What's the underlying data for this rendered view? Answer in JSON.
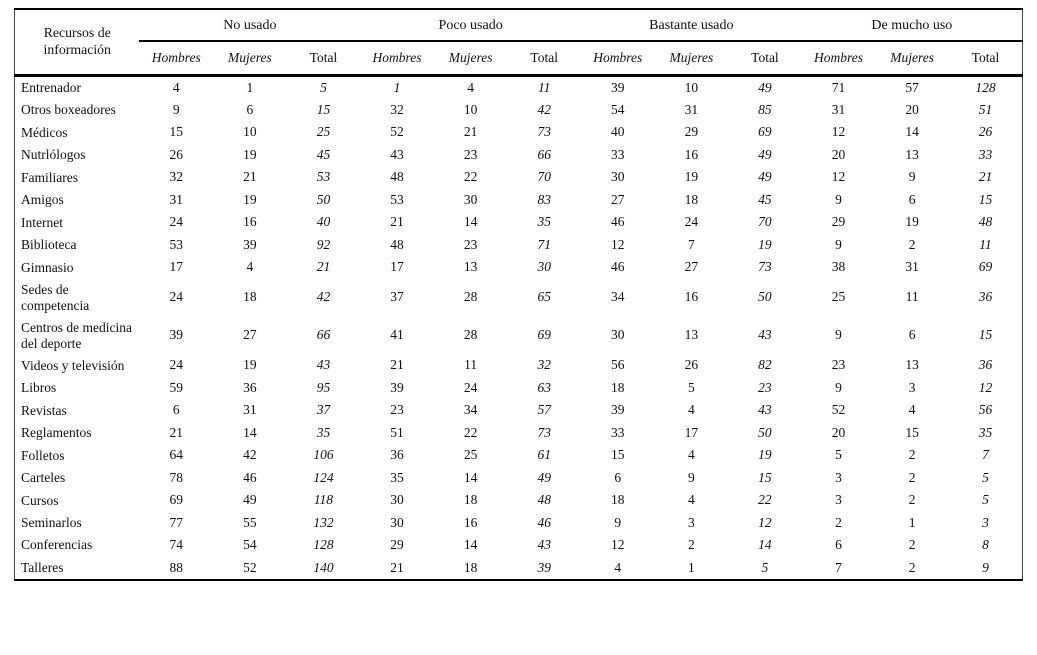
{
  "page": {
    "background": "#ffffff",
    "text_color": "#111111",
    "rule_color": "#000000"
  },
  "table": {
    "corner_header": "Recursos de información",
    "groups": [
      {
        "label": "No usado"
      },
      {
        "label": "Poco usado"
      },
      {
        "label": "Bastante usado"
      },
      {
        "label": "De mucho uso"
      }
    ],
    "subheaders": [
      "Hombres",
      "Mujeres",
      "Total"
    ],
    "italic_value_columns": [
      2,
      5,
      8,
      11
    ],
    "rows": [
      {
        "label": "Entrenador",
        "values": [
          4,
          1,
          5,
          1,
          4,
          11,
          39,
          10,
          49,
          71,
          57,
          128
        ],
        "extra_italic": [
          3
        ]
      },
      {
        "label": "Otros boxeadores",
        "values": [
          9,
          6,
          15,
          32,
          10,
          42,
          54,
          31,
          85,
          31,
          20,
          51
        ]
      },
      {
        "label": "Médicos",
        "values": [
          15,
          10,
          25,
          52,
          21,
          73,
          40,
          29,
          69,
          12,
          14,
          26
        ]
      },
      {
        "label": "Nutrlólogos",
        "values": [
          26,
          19,
          45,
          43,
          23,
          66,
          33,
          16,
          49,
          20,
          13,
          33
        ]
      },
      {
        "label": "Familiares",
        "values": [
          32,
          21,
          53,
          48,
          22,
          70,
          30,
          19,
          49,
          12,
          9,
          21
        ]
      },
      {
        "label": "Amigos",
        "values": [
          31,
          19,
          50,
          53,
          30,
          83,
          27,
          18,
          45,
          9,
          6,
          15
        ]
      },
      {
        "label": "Internet",
        "values": [
          24,
          16,
          40,
          21,
          14,
          35,
          46,
          24,
          70,
          29,
          19,
          48
        ]
      },
      {
        "label": "Biblioteca",
        "values": [
          53,
          39,
          92,
          48,
          23,
          71,
          12,
          7,
          19,
          9,
          2,
          11
        ]
      },
      {
        "label": "Gimnasio",
        "values": [
          17,
          4,
          21,
          17,
          13,
          30,
          46,
          27,
          73,
          38,
          31,
          69
        ]
      },
      {
        "label": "Sedes de competencia",
        "values": [
          24,
          18,
          42,
          37,
          28,
          65,
          34,
          16,
          50,
          25,
          11,
          36
        ]
      },
      {
        "label": "Centros de medicina del deporte",
        "values": [
          39,
          27,
          66,
          41,
          28,
          69,
          30,
          13,
          43,
          9,
          6,
          15
        ]
      },
      {
        "label": "Videos y televisión",
        "values": [
          24,
          19,
          43,
          21,
          11,
          32,
          56,
          26,
          82,
          23,
          13,
          36
        ]
      },
      {
        "label": "Libros",
        "values": [
          59,
          36,
          95,
          39,
          24,
          63,
          18,
          5,
          23,
          9,
          3,
          12
        ]
      },
      {
        "label": "Revistas",
        "values": [
          6,
          31,
          37,
          23,
          34,
          57,
          39,
          4,
          43,
          52,
          4,
          56
        ]
      },
      {
        "label": "Reglamentos",
        "values": [
          21,
          14,
          35,
          51,
          22,
          73,
          33,
          17,
          50,
          20,
          15,
          35
        ]
      },
      {
        "label": "Folletos",
        "values": [
          64,
          42,
          106,
          36,
          25,
          61,
          15,
          4,
          19,
          5,
          2,
          7
        ]
      },
      {
        "label": "Carteles",
        "values": [
          78,
          46,
          124,
          35,
          14,
          49,
          6,
          9,
          15,
          3,
          2,
          5
        ]
      },
      {
        "label": "Cursos",
        "values": [
          69,
          49,
          118,
          30,
          18,
          48,
          18,
          4,
          22,
          3,
          2,
          5
        ]
      },
      {
        "label": "Seminarlos",
        "values": [
          77,
          55,
          132,
          30,
          16,
          46,
          9,
          3,
          12,
          2,
          1,
          3
        ]
      },
      {
        "label": "Conferencias",
        "values": [
          74,
          54,
          128,
          29,
          14,
          43,
          12,
          2,
          14,
          6,
          2,
          8
        ]
      },
      {
        "label": "Talleres",
        "values": [
          88,
          52,
          140,
          21,
          18,
          39,
          4,
          1,
          5,
          7,
          2,
          9
        ]
      }
    ]
  }
}
